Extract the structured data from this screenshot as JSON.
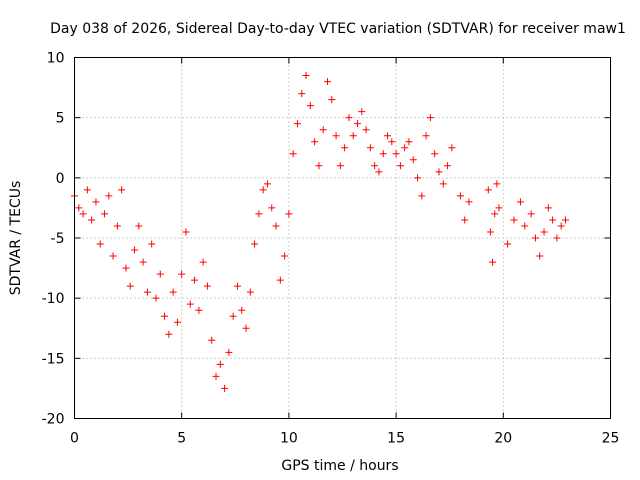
{
  "chart_data": {
    "type": "scatter",
    "title": "Day 038 of 2026, Sidereal Day-to-day VTEC variation (SDTVAR) for receiver maw1",
    "xlabel": "GPS time / hours",
    "ylabel": "SDTVAR / TECUs",
    "xlim": [
      0,
      25
    ],
    "ylim": [
      -20,
      10
    ],
    "xticks": [
      0,
      5,
      10,
      15,
      20,
      25
    ],
    "yticks": [
      -20,
      -15,
      -10,
      -5,
      0,
      5,
      10
    ],
    "grid": true,
    "marker": "plus",
    "series": [
      {
        "name": "SDTVAR",
        "color": "#ff0000",
        "points": [
          [
            0.0,
            -1.5
          ],
          [
            0.2,
            -2.5
          ],
          [
            0.4,
            -3.0
          ],
          [
            0.6,
            -1.0
          ],
          [
            0.8,
            -3.5
          ],
          [
            1.0,
            -2.0
          ],
          [
            1.2,
            -5.5
          ],
          [
            1.4,
            -3.0
          ],
          [
            1.6,
            -1.5
          ],
          [
            1.8,
            -6.5
          ],
          [
            2.0,
            -4.0
          ],
          [
            2.2,
            -1.0
          ],
          [
            2.4,
            -7.5
          ],
          [
            2.6,
            -9.0
          ],
          [
            2.8,
            -6.0
          ],
          [
            3.0,
            -4.0
          ],
          [
            3.2,
            -7.0
          ],
          [
            3.4,
            -9.5
          ],
          [
            3.6,
            -5.5
          ],
          [
            3.8,
            -10.0
          ],
          [
            4.0,
            -8.0
          ],
          [
            4.2,
            -11.5
          ],
          [
            4.4,
            -13.0
          ],
          [
            4.6,
            -9.5
          ],
          [
            4.8,
            -12.0
          ],
          [
            5.0,
            -8.0
          ],
          [
            5.2,
            -4.5
          ],
          [
            5.4,
            -10.5
          ],
          [
            5.6,
            -8.5
          ],
          [
            5.8,
            -11.0
          ],
          [
            6.0,
            -7.0
          ],
          [
            6.2,
            -9.0
          ],
          [
            6.4,
            -13.5
          ],
          [
            6.6,
            -16.5
          ],
          [
            6.8,
            -15.5
          ],
          [
            7.0,
            -17.5
          ],
          [
            7.2,
            -14.5
          ],
          [
            7.4,
            -11.5
          ],
          [
            7.6,
            -9.0
          ],
          [
            7.8,
            -11.0
          ],
          [
            8.0,
            -12.5
          ],
          [
            8.2,
            -9.5
          ],
          [
            8.4,
            -5.5
          ],
          [
            8.6,
            -3.0
          ],
          [
            8.8,
            -1.0
          ],
          [
            9.0,
            -0.5
          ],
          [
            9.2,
            -2.5
          ],
          [
            9.4,
            -4.0
          ],
          [
            9.6,
            -8.5
          ],
          [
            9.8,
            -6.5
          ],
          [
            10.0,
            -3.0
          ],
          [
            10.2,
            2.0
          ],
          [
            10.4,
            4.5
          ],
          [
            10.6,
            7.0
          ],
          [
            10.8,
            8.5
          ],
          [
            11.0,
            6.0
          ],
          [
            11.2,
            3.0
          ],
          [
            11.4,
            1.0
          ],
          [
            11.6,
            4.0
          ],
          [
            11.8,
            8.0
          ],
          [
            12.0,
            6.5
          ],
          [
            12.2,
            3.5
          ],
          [
            12.4,
            1.0
          ],
          [
            12.6,
            2.5
          ],
          [
            12.8,
            5.0
          ],
          [
            13.0,
            3.5
          ],
          [
            13.2,
            4.5
          ],
          [
            13.4,
            5.5
          ],
          [
            13.6,
            4.0
          ],
          [
            13.8,
            2.5
          ],
          [
            14.0,
            1.0
          ],
          [
            14.2,
            0.5
          ],
          [
            14.4,
            2.0
          ],
          [
            14.6,
            3.5
          ],
          [
            14.8,
            3.0
          ],
          [
            15.0,
            2.0
          ],
          [
            15.2,
            1.0
          ],
          [
            15.4,
            2.5
          ],
          [
            15.6,
            3.0
          ],
          [
            15.8,
            1.5
          ],
          [
            16.0,
            0.0
          ],
          [
            16.2,
            -1.5
          ],
          [
            16.4,
            3.5
          ],
          [
            16.6,
            5.0
          ],
          [
            16.8,
            2.0
          ],
          [
            17.0,
            0.5
          ],
          [
            17.2,
            -0.5
          ],
          [
            17.4,
            1.0
          ],
          [
            17.6,
            2.5
          ],
          [
            18.0,
            -1.5
          ],
          [
            18.2,
            -3.5
          ],
          [
            18.4,
            -2.0
          ],
          [
            19.3,
            -1.0
          ],
          [
            19.4,
            -4.5
          ],
          [
            19.5,
            -7.0
          ],
          [
            19.6,
            -3.0
          ],
          [
            19.7,
            -0.5
          ],
          [
            19.8,
            -2.5
          ],
          [
            20.2,
            -5.5
          ],
          [
            20.5,
            -3.5
          ],
          [
            20.8,
            -2.0
          ],
          [
            21.0,
            -4.0
          ],
          [
            21.3,
            -3.0
          ],
          [
            21.5,
            -5.0
          ],
          [
            21.7,
            -6.5
          ],
          [
            21.9,
            -4.5
          ],
          [
            22.1,
            -2.5
          ],
          [
            22.3,
            -3.5
          ],
          [
            22.5,
            -5.0
          ],
          [
            22.7,
            -4.0
          ],
          [
            22.9,
            -3.5
          ]
        ]
      }
    ]
  }
}
